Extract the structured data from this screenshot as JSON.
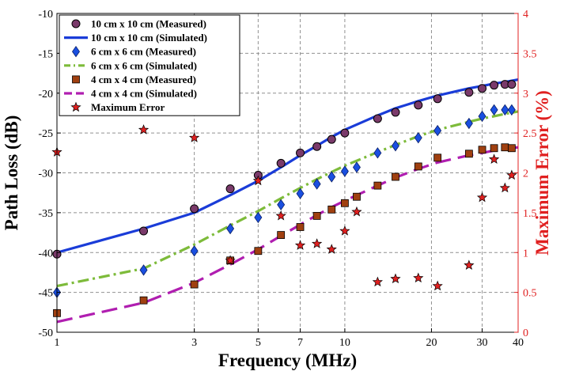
{
  "chart_data": {
    "type": "line",
    "xlabel": "Frequency (MHz)",
    "ylabel": "Path Loss (dB)",
    "y2label": "Maximum Error (%)",
    "xscale": "log",
    "xlim": [
      1,
      40
    ],
    "ylim": [
      -50,
      -10
    ],
    "y2lim": [
      0,
      4
    ],
    "xticks": [
      1,
      3,
      5,
      7,
      10,
      20,
      30,
      40
    ],
    "yticks": [
      -50,
      -45,
      -40,
      -35,
      -30,
      -25,
      -20,
      -15,
      -10
    ],
    "y2ticks": [
      0,
      0.5,
      1,
      1.5,
      2,
      2.5,
      3,
      3.5,
      4
    ],
    "y2ticklabels": [
      "0",
      "0.5",
      "1",
      "1.5",
      "2",
      "2.5",
      "3",
      "3.5",
      "4"
    ],
    "grid": true,
    "legend_position": "top-left",
    "colors": {
      "left_axis": "#000000",
      "right_axis": "#e02020"
    },
    "series": [
      {
        "name": "10 cm x 10 cm (Measured)",
        "kind": "marker",
        "marker": "circle",
        "color": "#7a3a6a",
        "axis": "left",
        "x": [
          1,
          2,
          3,
          4,
          5,
          6,
          7,
          8,
          9,
          10,
          13,
          15,
          18,
          21,
          27,
          30,
          33,
          36,
          38
        ],
        "y": [
          -40.2,
          -37.3,
          -34.5,
          -32.0,
          -30.3,
          -28.8,
          -27.5,
          -26.7,
          -25.8,
          -25.0,
          -23.2,
          -22.4,
          -21.5,
          -20.7,
          -19.9,
          -19.4,
          -19.0,
          -18.9,
          -18.9
        ]
      },
      {
        "name": "10 cm x 10 cm (Simulated)",
        "kind": "line",
        "style": "solid",
        "color": "#1a3cd8",
        "axis": "left",
        "x": [
          1,
          2,
          3,
          4,
          5,
          6,
          7,
          8,
          9,
          10,
          13,
          15,
          18,
          21,
          27,
          30,
          33,
          36,
          40
        ],
        "y": [
          -40.0,
          -37.0,
          -35.0,
          -32.8,
          -31.0,
          -29.3,
          -27.8,
          -26.6,
          -25.5,
          -24.6,
          -22.8,
          -21.9,
          -21.0,
          -20.3,
          -19.4,
          -19.1,
          -18.8,
          -18.6,
          -18.3
        ]
      },
      {
        "name": "6 cm x 6 cm (Measured)",
        "kind": "marker",
        "marker": "diamond",
        "color": "#1a4fe0",
        "axis": "left",
        "x": [
          1,
          2,
          3,
          4,
          5,
          6,
          7,
          8,
          9,
          10,
          11,
          13,
          15,
          18,
          21,
          27,
          30,
          33,
          36,
          38
        ],
        "y": [
          -45.0,
          -42.2,
          -39.8,
          -37.0,
          -35.6,
          -34.0,
          -32.6,
          -31.4,
          -30.5,
          -29.8,
          -29.3,
          -27.5,
          -26.6,
          -25.6,
          -24.7,
          -23.8,
          -22.9,
          -22.1,
          -22.1,
          -22.1
        ]
      },
      {
        "name": "6 cm x 6 cm (Simulated)",
        "kind": "line",
        "style": "dashdot",
        "color": "#7dbb3a",
        "axis": "left",
        "x": [
          1,
          2,
          3,
          4,
          5,
          6,
          7,
          8,
          9,
          10,
          13,
          15,
          18,
          21,
          27,
          30,
          33,
          36,
          40
        ],
        "y": [
          -44.2,
          -42.0,
          -39.0,
          -36.6,
          -34.8,
          -33.2,
          -31.9,
          -30.8,
          -29.9,
          -29.1,
          -27.4,
          -26.5,
          -25.4,
          -24.6,
          -23.6,
          -23.2,
          -22.9,
          -22.6,
          -22.3
        ]
      },
      {
        "name": "4 cm x 4 cm (Measured)",
        "kind": "marker",
        "marker": "square",
        "color": "#a04010",
        "axis": "left",
        "x": [
          1,
          2,
          3,
          4,
          5,
          6,
          7,
          8,
          9,
          10,
          11,
          13,
          15,
          18,
          21,
          27,
          30,
          33,
          36,
          38
        ],
        "y": [
          -47.6,
          -46.0,
          -44.0,
          -41.0,
          -39.8,
          -37.8,
          -36.8,
          -35.4,
          -34.6,
          -33.8,
          -33.0,
          -31.6,
          -30.5,
          -29.2,
          -28.1,
          -27.6,
          -27.1,
          -26.9,
          -26.8,
          -26.9
        ]
      },
      {
        "name": "4 cm x 4 cm (Simulated)",
        "kind": "line",
        "style": "dashed",
        "color": "#b01eb0",
        "axis": "left",
        "x": [
          1,
          2,
          3,
          4,
          5,
          6,
          7,
          8,
          9,
          10,
          13,
          15,
          18,
          21,
          27,
          30,
          33,
          36,
          40
        ],
        "y": [
          -48.7,
          -46.3,
          -43.8,
          -41.5,
          -39.6,
          -37.9,
          -36.5,
          -35.3,
          -34.3,
          -33.5,
          -31.6,
          -30.6,
          -29.5,
          -28.7,
          -27.8,
          -27.5,
          -27.2,
          -27.0,
          -26.8
        ]
      },
      {
        "name": "Maximum Error",
        "kind": "marker",
        "marker": "star",
        "color": "#e02020",
        "axis": "right",
        "x": [
          1,
          2,
          3,
          4,
          5,
          6,
          7,
          8,
          9,
          10,
          11,
          13,
          15,
          18,
          21,
          27,
          30,
          33,
          36,
          38
        ],
        "y": [
          2.26,
          2.54,
          2.44,
          0.9,
          1.9,
          1.46,
          1.09,
          1.11,
          1.04,
          1.27,
          1.51,
          0.63,
          0.67,
          0.68,
          0.58,
          0.84,
          1.69,
          2.17,
          1.81,
          1.97
        ]
      }
    ]
  }
}
